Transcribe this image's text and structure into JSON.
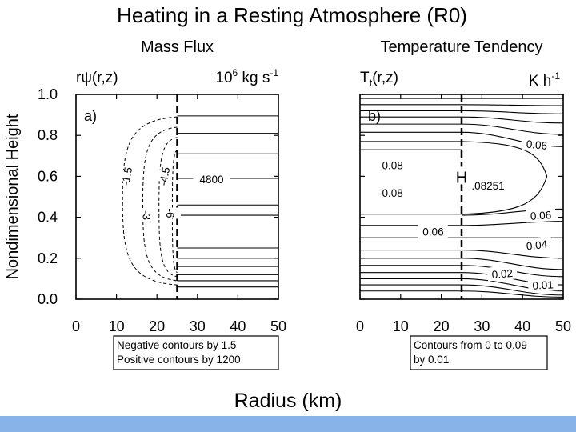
{
  "slide": {
    "title": "Heating in a Resting Atmosphere (R0)",
    "x_label": "Radius (km)",
    "y_label": "Nondimensional Height",
    "footer_color": "#87b3e8"
  },
  "chart_data": [
    {
      "type": "contour",
      "panel": "a)",
      "title": "Mass Flux",
      "left_header": "rψ(r,z)",
      "units": "10^6 kg s^-1",
      "units_parts": {
        "base": "10",
        "exp": "6",
        "rest": " kg s",
        "exp2": "-1"
      },
      "x_ticks": [
        0,
        10,
        20,
        30,
        40,
        50
      ],
      "y_ticks": [
        "0.0",
        "0.2",
        "0.4",
        "0.6",
        "0.8",
        "1.0"
      ],
      "xlim": [
        0,
        50
      ],
      "ylim": [
        0,
        1
      ],
      "heating_boundary_r": 25,
      "negative_contours": [
        {
          "label": "-1.5",
          "r_min": 11.5,
          "z_top": 0.89,
          "z_bot": 0.07,
          "label_pos": [
            12.5,
            0.6
          ],
          "label_rot": -80
        },
        {
          "label": "-3",
          "r_min": 16.5,
          "z_top": 0.84,
          "z_bot": 0.09,
          "label_pos": [
            17.5,
            0.41
          ],
          "label_rot": 90
        },
        {
          "label": "-4.5",
          "r_min": 20.5,
          "z_top": 0.79,
          "z_bot": 0.11,
          "label_pos": [
            21.8,
            0.6
          ],
          "label_rot": -80
        },
        {
          "label": "-6",
          "r_min": 23.8,
          "z_top": 0.73,
          "z_bot": 0.13,
          "label_pos": [
            23.3,
            0.42
          ],
          "label_rot": 90
        }
      ],
      "positive_contour_levels_z": [
        0.895,
        0.81,
        0.71,
        0.59,
        0.46,
        0.41,
        0.25,
        0.2,
        0.16,
        0.12,
        0.09,
        0.06
      ],
      "positive_label": {
        "text": "4800",
        "pos": [
          33.5,
          0.585
        ]
      },
      "note_lines": [
        "Negative contours by 1.5",
        "Positive contours by 1200"
      ]
    },
    {
      "type": "contour",
      "panel": "b)",
      "title": "Temperature Tendency",
      "left_header": "Tt(r,z)",
      "left_header_parts": {
        "base": "T",
        "sub": "t",
        "rest": "(r,z)"
      },
      "units": "K h^-1",
      "units_parts": {
        "base": "K h",
        "exp": "-1"
      },
      "x_ticks": [
        0,
        10,
        20,
        30,
        40,
        50
      ],
      "y_ticks": [
        "0.0",
        "0.2",
        "0.4",
        "0.6",
        "0.8",
        "1.0"
      ],
      "xlim": [
        0,
        50
      ],
      "ylim": [
        0,
        1
      ],
      "heating_boundary_r": 25,
      "inner_lines_z": [
        0.98,
        0.95,
        0.92,
        0.89,
        0.855,
        0.815,
        0.77,
        0.73,
        0.415,
        0.36,
        0.3,
        0.24,
        0.2,
        0.165,
        0.13,
        0.1,
        0.07,
        0.04
      ],
      "outer_lines": [
        {
          "z25": 0.98,
          "z50": 0.98
        },
        {
          "z25": 0.95,
          "z50": 0.945
        },
        {
          "z25": 0.92,
          "z50": 0.905
        },
        {
          "z25": 0.89,
          "z50": 0.86
        },
        {
          "z25": 0.855,
          "z50": 0.805
        },
        {
          "z25": 0.815,
          "z50": 0.745
        },
        {
          "z25": 0.41,
          "z50": 0.44
        },
        {
          "z25": 0.36,
          "z50": 0.38
        },
        {
          "z25": 0.3,
          "z50": 0.3
        },
        {
          "z25": 0.24,
          "z50": 0.2
        },
        {
          "z25": 0.2,
          "z50": 0.145
        },
        {
          "z25": 0.165,
          "z50": 0.11
        },
        {
          "z25": 0.13,
          "z50": 0.07
        },
        {
          "z25": 0.1,
          "z50": 0.04
        },
        {
          "z25": 0.07,
          "z50": 0.02
        },
        {
          "z25": 0.04,
          "z50": 0.01
        }
      ],
      "closed_contour": {
        "z_top": 0.77,
        "z_bot": 0.415,
        "r_max": 46,
        "z_mid": 0.6
      },
      "labels": [
        {
          "text": "0.06",
          "r": 43.5,
          "z": 0.755,
          "rot": 5
        },
        {
          "text": "0.08",
          "r": 8,
          "z": 0.655,
          "rot": 0
        },
        {
          "text": "0.08",
          "r": 8,
          "z": 0.52,
          "rot": 0
        },
        {
          "text": ".08251",
          "r": 31.5,
          "z": 0.555,
          "rot": 0
        },
        {
          "text": "0.06",
          "r": 44.5,
          "z": 0.41,
          "rot": -4
        },
        {
          "text": "0.06",
          "r": 18,
          "z": 0.33,
          "rot": 0
        },
        {
          "text": "0.04",
          "r": 43.5,
          "z": 0.265,
          "rot": -6
        },
        {
          "text": "0.02",
          "r": 35,
          "z": 0.125,
          "rot": -5
        },
        {
          "text": "0.01",
          "r": 45,
          "z": 0.07,
          "rot": -3
        }
      ],
      "max_marker": {
        "text": "H",
        "r": 25,
        "z": 0.6
      },
      "note_lines": [
        "Contours from 0 to 0.09",
        "by 0.01"
      ]
    }
  ]
}
